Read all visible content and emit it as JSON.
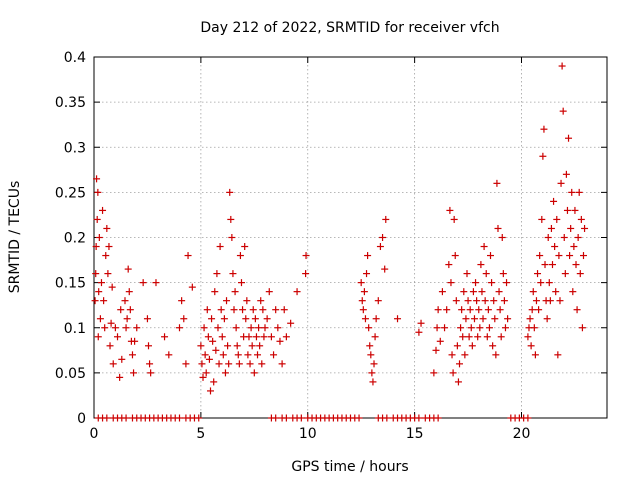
{
  "chart_data": {
    "type": "scatter",
    "title": "Day 212 of 2022, SRMTID for receiver vfch",
    "xlabel": "GPS time / hours",
    "ylabel": "SRMTID / TECUs",
    "xlim": [
      0,
      24
    ],
    "ylim": [
      0,
      0.4
    ],
    "xticks": [
      0,
      5,
      10,
      15,
      20
    ],
    "xtick_labels": [
      "0",
      "5",
      "10",
      "15",
      "20"
    ],
    "yticks": [
      0,
      0.05,
      0.1,
      0.15,
      0.2,
      0.25,
      0.3,
      0.35,
      0.4
    ],
    "ytick_labels": [
      "0",
      "0.05",
      "0.1",
      "0.15",
      "0.2",
      "0.25",
      "0.3",
      "0.35",
      "0.4"
    ],
    "grid": true,
    "marker": "+",
    "series_color": "#cc0000",
    "series": [
      {
        "name": "SRMTID",
        "points": [
          [
            0.05,
            0.13
          ],
          [
            0.08,
            0.16
          ],
          [
            0.1,
            0.19
          ],
          [
            0.12,
            0.265
          ],
          [
            0.15,
            0.22
          ],
          [
            0.18,
            0.25
          ],
          [
            0.2,
            0.09
          ],
          [
            0.22,
            0.14
          ],
          [
            0.25,
            0.2
          ],
          [
            0.3,
            0.11
          ],
          [
            0.35,
            0.15
          ],
          [
            0.4,
            0.23
          ],
          [
            0.45,
            0.13
          ],
          [
            0.5,
            0.1
          ],
          [
            0.55,
            0.18
          ],
          [
            0.6,
            0.21
          ],
          [
            0.65,
            0.16
          ],
          [
            0.7,
            0.19
          ],
          [
            0.75,
            0.08
          ],
          [
            0.8,
            0.105
          ],
          [
            0.85,
            0.145
          ],
          [
            0.9,
            0.06
          ],
          [
            1.0,
            0.1
          ],
          [
            1.1,
            0.09
          ],
          [
            1.2,
            0.045
          ],
          [
            1.25,
            0.12
          ],
          [
            1.3,
            0.065
          ],
          [
            1.45,
            0.13
          ],
          [
            1.5,
            0.1
          ],
          [
            1.55,
            0.11
          ],
          [
            1.6,
            0.165
          ],
          [
            1.65,
            0.14
          ],
          [
            1.7,
            0.12
          ],
          [
            1.75,
            0.085
          ],
          [
            1.8,
            0.07
          ],
          [
            1.85,
            0.05
          ],
          [
            1.9,
            0.085
          ],
          [
            2.0,
            0.1
          ],
          [
            2.3,
            0.15
          ],
          [
            2.5,
            0.11
          ],
          [
            2.55,
            0.08
          ],
          [
            2.6,
            0.06
          ],
          [
            2.65,
            0.05
          ],
          [
            2.9,
            0.15
          ],
          [
            3.3,
            0.09
          ],
          [
            3.5,
            0.07
          ],
          [
            4.0,
            0.1
          ],
          [
            4.1,
            0.13
          ],
          [
            4.2,
            0.11
          ],
          [
            4.3,
            0.06
          ],
          [
            4.4,
            0.18
          ],
          [
            4.6,
            0.145
          ],
          [
            5.0,
            0.08
          ],
          [
            5.05,
            0.06
          ],
          [
            5.1,
            0.045
          ],
          [
            5.15,
            0.1
          ],
          [
            5.2,
            0.07
          ],
          [
            5.25,
            0.05
          ],
          [
            5.3,
            0.12
          ],
          [
            5.35,
            0.09
          ],
          [
            5.4,
            0.065
          ],
          [
            5.45,
            0.03
          ],
          [
            5.5,
            0.11
          ],
          [
            5.55,
            0.085
          ],
          [
            5.6,
            0.04
          ],
          [
            5.65,
            0.14
          ],
          [
            5.7,
            0.075
          ],
          [
            5.75,
            0.16
          ],
          [
            5.8,
            0.1
          ],
          [
            5.85,
            0.06
          ],
          [
            5.9,
            0.19
          ],
          [
            5.95,
            0.12
          ],
          [
            6.0,
            0.09
          ],
          [
            6.05,
            0.07
          ],
          [
            6.1,
            0.11
          ],
          [
            6.15,
            0.05
          ],
          [
            6.2,
            0.13
          ],
          [
            6.25,
            0.08
          ],
          [
            6.3,
            0.06
          ],
          [
            6.35,
            0.25
          ],
          [
            6.4,
            0.22
          ],
          [
            6.45,
            0.2
          ],
          [
            6.5,
            0.16
          ],
          [
            6.55,
            0.12
          ],
          [
            6.6,
            0.14
          ],
          [
            6.65,
            0.1
          ],
          [
            6.7,
            0.08
          ],
          [
            6.75,
            0.07
          ],
          [
            6.8,
            0.06
          ],
          [
            6.85,
            0.18
          ],
          [
            6.9,
            0.15
          ],
          [
            6.95,
            0.12
          ],
          [
            7.0,
            0.09
          ],
          [
            7.05,
            0.19
          ],
          [
            7.1,
            0.11
          ],
          [
            7.15,
            0.13
          ],
          [
            7.2,
            0.07
          ],
          [
            7.25,
            0.09
          ],
          [
            7.3,
            0.06
          ],
          [
            7.35,
            0.1
          ],
          [
            7.4,
            0.08
          ],
          [
            7.45,
            0.12
          ],
          [
            7.5,
            0.05
          ],
          [
            7.55,
            0.11
          ],
          [
            7.6,
            0.09
          ],
          [
            7.65,
            0.07
          ],
          [
            7.7,
            0.1
          ],
          [
            7.75,
            0.08
          ],
          [
            7.8,
            0.13
          ],
          [
            7.85,
            0.06
          ],
          [
            7.9,
            0.12
          ],
          [
            7.95,
            0.09
          ],
          [
            8.0,
            0.1
          ],
          [
            8.1,
            0.11
          ],
          [
            8.2,
            0.14
          ],
          [
            8.3,
            0.09
          ],
          [
            8.4,
            0.07
          ],
          [
            8.5,
            0.12
          ],
          [
            8.6,
            0.1
          ],
          [
            8.7,
            0.085
          ],
          [
            8.8,
            0.06
          ],
          [
            8.9,
            0.12
          ],
          [
            9.0,
            0.09
          ],
          [
            9.2,
            0.105
          ],
          [
            9.5,
            0.14
          ],
          [
            9.9,
            0.16
          ],
          [
            9.92,
            0.18
          ],
          [
            12.5,
            0.15
          ],
          [
            12.55,
            0.13
          ],
          [
            12.6,
            0.12
          ],
          [
            12.65,
            0.14
          ],
          [
            12.7,
            0.11
          ],
          [
            12.75,
            0.16
          ],
          [
            12.8,
            0.18
          ],
          [
            12.85,
            0.1
          ],
          [
            12.9,
            0.08
          ],
          [
            12.95,
            0.07
          ],
          [
            13.0,
            0.05
          ],
          [
            13.05,
            0.04
          ],
          [
            13.1,
            0.06
          ],
          [
            13.15,
            0.09
          ],
          [
            13.2,
            0.11
          ],
          [
            13.3,
            0.13
          ],
          [
            13.4,
            0.19
          ],
          [
            13.5,
            0.2
          ],
          [
            13.6,
            0.165
          ],
          [
            13.65,
            0.22
          ],
          [
            14.2,
            0.11
          ],
          [
            15.2,
            0.095
          ],
          [
            15.3,
            0.105
          ],
          [
            15.9,
            0.05
          ],
          [
            16.0,
            0.075
          ],
          [
            16.05,
            0.1
          ],
          [
            16.1,
            0.12
          ],
          [
            16.2,
            0.085
          ],
          [
            16.3,
            0.14
          ],
          [
            16.4,
            0.1
          ],
          [
            16.5,
            0.12
          ],
          [
            16.6,
            0.17
          ],
          [
            16.65,
            0.23
          ],
          [
            16.7,
            0.15
          ],
          [
            16.75,
            0.07
          ],
          [
            16.8,
            0.05
          ],
          [
            16.85,
            0.22
          ],
          [
            16.9,
            0.18
          ],
          [
            16.95,
            0.13
          ],
          [
            17.0,
            0.08
          ],
          [
            17.05,
            0.04
          ],
          [
            17.1,
            0.06
          ],
          [
            17.15,
            0.1
          ],
          [
            17.2,
            0.12
          ],
          [
            17.25,
            0.09
          ],
          [
            17.3,
            0.14
          ],
          [
            17.35,
            0.07
          ],
          [
            17.4,
            0.11
          ],
          [
            17.45,
            0.16
          ],
          [
            17.5,
            0.13
          ],
          [
            17.55,
            0.09
          ],
          [
            17.6,
            0.12
          ],
          [
            17.65,
            0.1
          ],
          [
            17.7,
            0.08
          ],
          [
            17.75,
            0.14
          ],
          [
            17.8,
            0.11
          ],
          [
            17.85,
            0.15
          ],
          [
            17.9,
            0.13
          ],
          [
            17.95,
            0.09
          ],
          [
            18.0,
            0.12
          ],
          [
            18.05,
            0.1
          ],
          [
            18.1,
            0.17
          ],
          [
            18.15,
            0.14
          ],
          [
            18.2,
            0.11
          ],
          [
            18.25,
            0.19
          ],
          [
            18.3,
            0.13
          ],
          [
            18.35,
            0.16
          ],
          [
            18.4,
            0.09
          ],
          [
            18.45,
            0.12
          ],
          [
            18.5,
            0.1
          ],
          [
            18.55,
            0.18
          ],
          [
            18.6,
            0.15
          ],
          [
            18.65,
            0.08
          ],
          [
            18.7,
            0.13
          ],
          [
            18.75,
            0.11
          ],
          [
            18.8,
            0.07
          ],
          [
            18.85,
            0.26
          ],
          [
            18.9,
            0.21
          ],
          [
            18.95,
            0.14
          ],
          [
            19.0,
            0.12
          ],
          [
            19.05,
            0.09
          ],
          [
            19.1,
            0.2
          ],
          [
            19.15,
            0.16
          ],
          [
            19.2,
            0.13
          ],
          [
            19.25,
            0.1
          ],
          [
            19.3,
            0.15
          ],
          [
            19.35,
            0.11
          ],
          [
            20.3,
            0.09
          ],
          [
            20.35,
            0.1
          ],
          [
            20.4,
            0.11
          ],
          [
            20.45,
            0.08
          ],
          [
            20.5,
            0.12
          ],
          [
            20.55,
            0.14
          ],
          [
            20.6,
            0.1
          ],
          [
            20.65,
            0.07
          ],
          [
            20.7,
            0.13
          ],
          [
            20.75,
            0.16
          ],
          [
            20.8,
            0.12
          ],
          [
            20.85,
            0.18
          ],
          [
            20.9,
            0.15
          ],
          [
            20.95,
            0.22
          ],
          [
            21.0,
            0.29
          ],
          [
            21.05,
            0.32
          ],
          [
            21.1,
            0.17
          ],
          [
            21.15,
            0.13
          ],
          [
            21.2,
            0.11
          ],
          [
            21.25,
            0.2
          ],
          [
            21.3,
            0.15
          ],
          [
            21.35,
            0.13
          ],
          [
            21.4,
            0.21
          ],
          [
            21.45,
            0.17
          ],
          [
            21.5,
            0.24
          ],
          [
            21.55,
            0.19
          ],
          [
            21.6,
            0.14
          ],
          [
            21.65,
            0.22
          ],
          [
            21.7,
            0.07
          ],
          [
            21.75,
            0.18
          ],
          [
            21.8,
            0.13
          ],
          [
            21.85,
            0.26
          ],
          [
            21.9,
            0.39
          ],
          [
            21.95,
            0.34
          ],
          [
            22.0,
            0.2
          ],
          [
            22.05,
            0.16
          ],
          [
            22.1,
            0.27
          ],
          [
            22.15,
            0.23
          ],
          [
            22.2,
            0.31
          ],
          [
            22.25,
            0.18
          ],
          [
            22.3,
            0.21
          ],
          [
            22.35,
            0.25
          ],
          [
            22.4,
            0.14
          ],
          [
            22.45,
            0.19
          ],
          [
            22.5,
            0.23
          ],
          [
            22.55,
            0.17
          ],
          [
            22.6,
            0.12
          ],
          [
            22.65,
            0.2
          ],
          [
            22.7,
            0.25
          ],
          [
            22.75,
            0.16
          ],
          [
            22.8,
            0.22
          ],
          [
            22.85,
            0.1
          ],
          [
            22.9,
            0.18
          ],
          [
            22.95,
            0.21
          ]
        ],
        "zero_points": [
          0.2,
          0.4,
          0.6,
          0.9,
          1.1,
          1.3,
          1.5,
          1.8,
          2.0,
          2.2,
          2.4,
          2.6,
          2.8,
          3.0,
          3.2,
          3.4,
          3.6,
          3.8,
          4.0,
          4.3,
          4.5,
          4.7,
          4.9,
          8.3,
          8.5,
          8.8,
          9.0,
          9.3,
          9.5,
          9.7,
          10.0,
          10.2,
          10.4,
          10.6,
          10.8,
          11.0,
          11.2,
          11.4,
          11.6,
          11.8,
          12.0,
          12.2,
          12.4,
          13.3,
          13.5,
          13.7,
          14.0,
          14.2,
          14.4,
          14.6,
          14.8,
          15.0,
          15.2,
          15.5,
          15.7,
          15.9,
          16.1,
          19.5,
          19.7,
          19.9,
          20.1,
          20.3
        ]
      }
    ]
  }
}
